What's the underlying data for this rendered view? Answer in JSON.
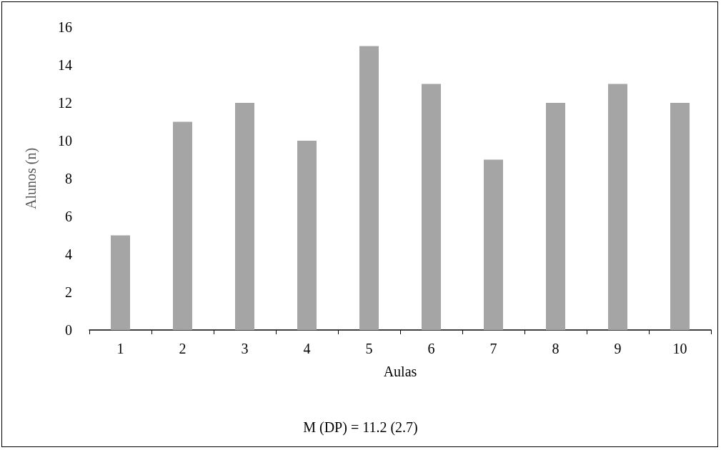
{
  "chart_data": {
    "type": "bar",
    "xlabel": "Aulas",
    "ylabel": "Alunos (n)",
    "categories": [
      "1",
      "2",
      "3",
      "4",
      "5",
      "6",
      "7",
      "8",
      "9",
      "10"
    ],
    "values": [
      5,
      11,
      12,
      10,
      15,
      13,
      9,
      12,
      13,
      12
    ],
    "color": "#a5a5a5",
    "ylim": [
      0,
      16
    ],
    "yticks": [
      0,
      2,
      4,
      6,
      8,
      10,
      12,
      14,
      16
    ],
    "grid": false,
    "annotations": [
      "M (DP) = 11.2 (2.7)"
    ]
  }
}
